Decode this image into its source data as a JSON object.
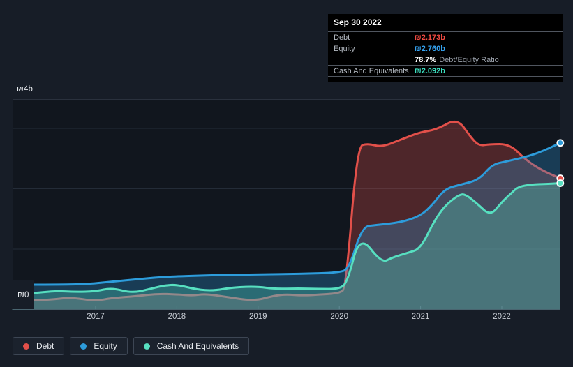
{
  "tooltip": {
    "date": "Sep 30 2022",
    "debt_label": "Debt",
    "debt_value": "₪2.173b",
    "equity_label": "Equity",
    "equity_value": "₪2.760b",
    "ratio_value": "78.7%",
    "ratio_label": "Debt/Equity Ratio",
    "cash_label": "Cash And Equivalents",
    "cash_value": "₪2.092b"
  },
  "y_axis": {
    "top_label": "₪4b",
    "bottom_label": "₪0"
  },
  "x_axis": {
    "ticks": [
      "2017",
      "2018",
      "2019",
      "2020",
      "2021",
      "2022"
    ]
  },
  "legend": {
    "items": [
      {
        "label": "Debt",
        "color": "#e2504a"
      },
      {
        "label": "Equity",
        "color": "#2d9cdb"
      },
      {
        "label": "Cash And Equivalents",
        "color": "#57dfc0"
      }
    ]
  },
  "colors": {
    "background": "#171d27",
    "plot_background": "#11161e",
    "grid": "#242c38",
    "boundary": "#3c4553",
    "tick": "#4c5664",
    "tooltip_bg": "#000000",
    "tooltip_divider": "#50565f",
    "debt": "#e2504a",
    "equity": "#2d9cdb",
    "cash": "#57dfc0",
    "debt_value_text": "#f24b42",
    "equity_value_text": "#36a4f2",
    "cash_value_text": "#3ce3c3"
  },
  "chart_data": {
    "type": "area",
    "title": "Debt, Equity and Cash And Equivalents over time",
    "currency": "₪",
    "unit": "billions",
    "x_unit": "calendar year (quarterly data)",
    "x_range": [
      2015.97,
      2022.72
    ],
    "ylim": [
      0,
      4
    ],
    "y_gridline_values": [
      1,
      2,
      3
    ],
    "y_top_label_value": 4,
    "x_tick_years": [
      2017,
      2018,
      2019,
      2020,
      2021,
      2022
    ],
    "legend_position": "bottom-left",
    "last_point_date": "Sep 30 2022",
    "last_values": {
      "debt": 2.173,
      "equity": 2.76,
      "cash": 2.092,
      "debt_equity_ratio_pct": 78.7
    },
    "series": [
      {
        "name": "Debt",
        "color": "#e2504a",
        "points": [
          [
            2015.97,
            0.18
          ],
          [
            2016.25,
            0.15
          ],
          [
            2016.5,
            0.17
          ],
          [
            2016.7,
            0.2
          ],
          [
            2017.0,
            0.14
          ],
          [
            2017.2,
            0.19
          ],
          [
            2017.5,
            0.22
          ],
          [
            2017.75,
            0.26
          ],
          [
            2018.0,
            0.25
          ],
          [
            2018.2,
            0.23
          ],
          [
            2018.35,
            0.26
          ],
          [
            2018.6,
            0.21
          ],
          [
            2018.95,
            0.14
          ],
          [
            2019.2,
            0.23
          ],
          [
            2019.35,
            0.25
          ],
          [
            2019.55,
            0.23
          ],
          [
            2019.8,
            0.25
          ],
          [
            2020.0,
            0.27
          ],
          [
            2020.08,
            0.35
          ],
          [
            2020.22,
            2.7
          ],
          [
            2020.35,
            2.75
          ],
          [
            2020.52,
            2.69
          ],
          [
            2020.75,
            2.81
          ],
          [
            2021.0,
            2.94
          ],
          [
            2021.2,
            2.98
          ],
          [
            2021.45,
            3.17
          ],
          [
            2021.62,
            2.85
          ],
          [
            2021.72,
            2.71
          ],
          [
            2021.85,
            2.74
          ],
          [
            2022.1,
            2.74
          ],
          [
            2022.3,
            2.47
          ],
          [
            2022.5,
            2.3
          ],
          [
            2022.72,
            2.173
          ]
        ]
      },
      {
        "name": "Equity",
        "color": "#2d9cdb",
        "points": [
          [
            2015.97,
            0.41
          ],
          [
            2016.5,
            0.41
          ],
          [
            2016.9,
            0.42
          ],
          [
            2017.2,
            0.46
          ],
          [
            2017.5,
            0.5
          ],
          [
            2017.75,
            0.53
          ],
          [
            2018.0,
            0.55
          ],
          [
            2018.5,
            0.57
          ],
          [
            2019.0,
            0.58
          ],
          [
            2019.5,
            0.59
          ],
          [
            2020.0,
            0.61
          ],
          [
            2020.12,
            0.68
          ],
          [
            2020.28,
            1.37
          ],
          [
            2020.45,
            1.4
          ],
          [
            2020.75,
            1.44
          ],
          [
            2021.0,
            1.55
          ],
          [
            2021.15,
            1.74
          ],
          [
            2021.3,
            2.0
          ],
          [
            2021.5,
            2.07
          ],
          [
            2021.72,
            2.15
          ],
          [
            2021.88,
            2.4
          ],
          [
            2022.05,
            2.45
          ],
          [
            2022.3,
            2.53
          ],
          [
            2022.5,
            2.62
          ],
          [
            2022.72,
            2.76
          ]
        ]
      },
      {
        "name": "Cash And Equivalents",
        "color": "#57dfc0",
        "points": [
          [
            2015.97,
            0.28
          ],
          [
            2016.2,
            0.26
          ],
          [
            2016.5,
            0.31
          ],
          [
            2016.75,
            0.29
          ],
          [
            2017.0,
            0.3
          ],
          [
            2017.2,
            0.36
          ],
          [
            2017.45,
            0.27
          ],
          [
            2017.7,
            0.35
          ],
          [
            2017.85,
            0.4
          ],
          [
            2018.0,
            0.41
          ],
          [
            2018.25,
            0.33
          ],
          [
            2018.45,
            0.31
          ],
          [
            2018.7,
            0.37
          ],
          [
            2019.0,
            0.38
          ],
          [
            2019.2,
            0.34
          ],
          [
            2019.5,
            0.35
          ],
          [
            2019.75,
            0.34
          ],
          [
            2020.0,
            0.34
          ],
          [
            2020.1,
            0.45
          ],
          [
            2020.25,
            1.24
          ],
          [
            2020.52,
            0.77
          ],
          [
            2020.65,
            0.86
          ],
          [
            2020.85,
            0.94
          ],
          [
            2021.0,
            1.01
          ],
          [
            2021.17,
            1.47
          ],
          [
            2021.3,
            1.72
          ],
          [
            2021.47,
            1.9
          ],
          [
            2021.55,
            1.91
          ],
          [
            2021.7,
            1.75
          ],
          [
            2021.86,
            1.55
          ],
          [
            2022.0,
            1.78
          ],
          [
            2022.12,
            1.93
          ],
          [
            2022.2,
            2.03
          ],
          [
            2022.35,
            2.07
          ],
          [
            2022.55,
            2.08
          ],
          [
            2022.72,
            2.092
          ]
        ]
      }
    ]
  }
}
